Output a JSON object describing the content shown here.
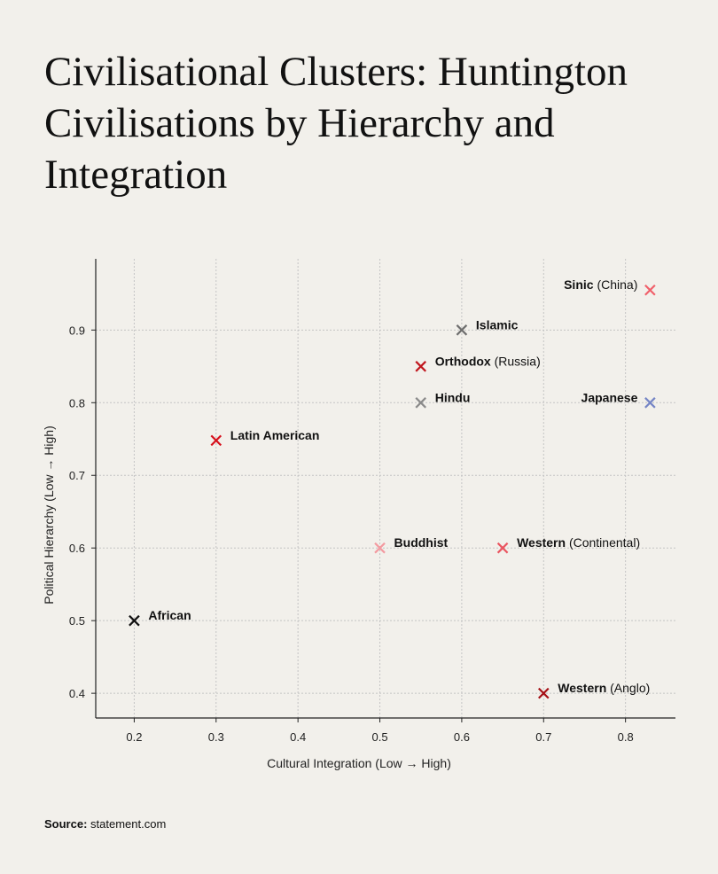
{
  "title": "Civilisational Clusters: Huntington Civilisations by Hierarchy and Integration",
  "source_label": "Source:",
  "source_value": "statement.com",
  "chart_data": {
    "type": "scatter",
    "title": "Civilisational Clusters: Huntington Civilisations by Hierarchy and Integration",
    "xlabel": "Cultural Integration (Low → High)",
    "ylabel": "Political Hierarchy (Low → High)",
    "xlim": [
      0.153,
      0.861
    ],
    "ylim": [
      0.366,
      0.998
    ],
    "xticks": [
      "0.2",
      "0.3",
      "0.4",
      "0.5",
      "0.6",
      "0.7",
      "0.8"
    ],
    "yticks": [
      "0.4",
      "0.5",
      "0.6",
      "0.7",
      "0.8",
      "0.9"
    ],
    "grid": true,
    "marker": "x",
    "points": [
      {
        "name": "Sinic",
        "suffix": "(China)",
        "x": 0.83,
        "y": 0.955,
        "color": "#f0606a",
        "label_side": "left"
      },
      {
        "name": "Islamic",
        "suffix": "",
        "x": 0.6,
        "y": 0.9,
        "color": "#6e6e6e",
        "label_side": "right"
      },
      {
        "name": "Orthodox",
        "suffix": "(Russia)",
        "x": 0.55,
        "y": 0.85,
        "color": "#c0161d",
        "label_side": "right"
      },
      {
        "name": "Hindu",
        "suffix": "",
        "x": 0.55,
        "y": 0.8,
        "color": "#8a8a8a",
        "label_side": "right"
      },
      {
        "name": "Japanese",
        "suffix": "",
        "x": 0.83,
        "y": 0.8,
        "color": "#7585c5",
        "label_side": "left"
      },
      {
        "name": "Latin American",
        "suffix": "",
        "x": 0.3,
        "y": 0.748,
        "color": "#d6101c",
        "label_side": "right"
      },
      {
        "name": "Buddhist",
        "suffix": "",
        "x": 0.5,
        "y": 0.6,
        "color": "#f39aa0",
        "label_side": "right"
      },
      {
        "name": "Western",
        "suffix": "(Continental)",
        "x": 0.65,
        "y": 0.6,
        "color": "#ea5560",
        "label_side": "right"
      },
      {
        "name": "African",
        "suffix": "",
        "x": 0.2,
        "y": 0.5,
        "color": "#111111",
        "label_side": "right"
      },
      {
        "name": "Western",
        "suffix": "(Anglo)",
        "x": 0.7,
        "y": 0.4,
        "color": "#a50f15",
        "label_side": "right"
      }
    ]
  }
}
